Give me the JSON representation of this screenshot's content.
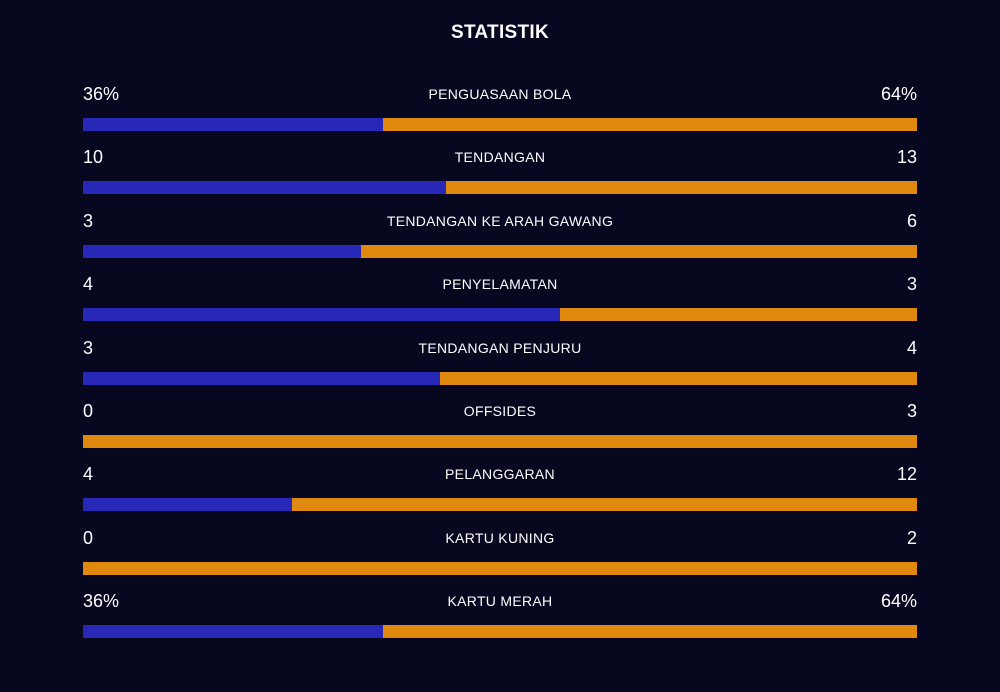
{
  "title": "STATISTIK",
  "colors": {
    "background": "#070720",
    "home": "#2727b8",
    "away": "#e0890f"
  },
  "chart_data": {
    "type": "bar",
    "title": "STATISTIK",
    "categories": [
      "PENGUASAAN BOLA",
      "TENDANGAN",
      "TENDANGAN KE ARAH GAWANG",
      "PENYELAMATAN",
      "TENDANGAN PENJURU",
      "OFFSIDES",
      "PELANGGARAN",
      "KARTU KUNING",
      "KARTU MERAH"
    ],
    "series": [
      {
        "labels": [
          "36%",
          "10",
          "3",
          "4",
          "3",
          "0",
          "4",
          "0",
          "36%"
        ],
        "values": [
          36,
          10,
          3,
          4,
          3,
          0,
          4,
          0,
          36
        ]
      },
      {
        "labels": [
          "64%",
          "13",
          "6",
          "3",
          "4",
          "3",
          "12",
          "2",
          "64%"
        ],
        "values": [
          64,
          13,
          6,
          3,
          4,
          3,
          12,
          2,
          64
        ]
      }
    ]
  }
}
